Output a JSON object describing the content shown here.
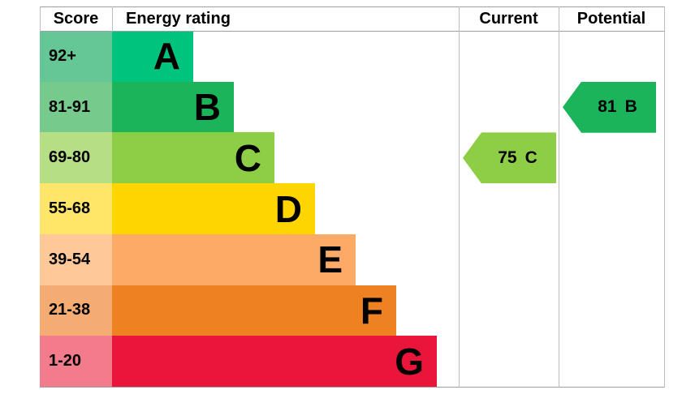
{
  "header": {
    "score": "Score",
    "energy_rating": "Energy rating",
    "current": "Current",
    "potential": "Potential"
  },
  "bands": [
    {
      "score_range": "92+",
      "letter": "A",
      "bar_color": "#00c47e",
      "score_bg": "#66c796"
    },
    {
      "score_range": "81-91",
      "letter": "B",
      "bar_color": "#1cb45a",
      "score_bg": "#76ca8c"
    },
    {
      "score_range": "69-80",
      "letter": "C",
      "bar_color": "#8dce46",
      "score_bg": "#b6de85"
    },
    {
      "score_range": "55-68",
      "letter": "D",
      "bar_color": "#ffd500",
      "score_bg": "#ffe669"
    },
    {
      "score_range": "39-54",
      "letter": "E",
      "bar_color": "#fcaa65",
      "score_bg": "#fec899"
    },
    {
      "score_range": "21-38",
      "letter": "F",
      "bar_color": "#ee8122",
      "score_bg": "#f4ac72"
    },
    {
      "score_range": "1-20",
      "letter": "G",
      "bar_color": "#e9153b",
      "score_bg": "#f27b8c"
    }
  ],
  "current": {
    "score": "75",
    "band": "C",
    "color": "#8dce46",
    "band_index": 2
  },
  "potential": {
    "score": "81",
    "band": "B",
    "color": "#1cb45a",
    "band_index": 1
  },
  "chart_data": {
    "type": "bar",
    "title": "Energy rating",
    "orientation": "horizontal",
    "columns": [
      "Score",
      "Energy rating",
      "Current",
      "Potential"
    ],
    "categories": [
      "A",
      "B",
      "C",
      "D",
      "E",
      "F",
      "G"
    ],
    "score_ranges": [
      "92+",
      "81-91",
      "69-80",
      "55-68",
      "39-54",
      "21-38",
      "1-20"
    ],
    "bar_colors": [
      "#00c47e",
      "#1cb45a",
      "#8dce46",
      "#ffd500",
      "#fcaa65",
      "#ee8122",
      "#e9153b"
    ],
    "score_cell_colors": [
      "#66c796",
      "#76ca8c",
      "#b6de85",
      "#ffe669",
      "#fec899",
      "#f4ac72",
      "#f27b8c"
    ],
    "current_rating": {
      "score": 75,
      "band": "C"
    },
    "potential_rating": {
      "score": 81,
      "band": "B"
    },
    "legend_position": "none",
    "grid": false
  }
}
